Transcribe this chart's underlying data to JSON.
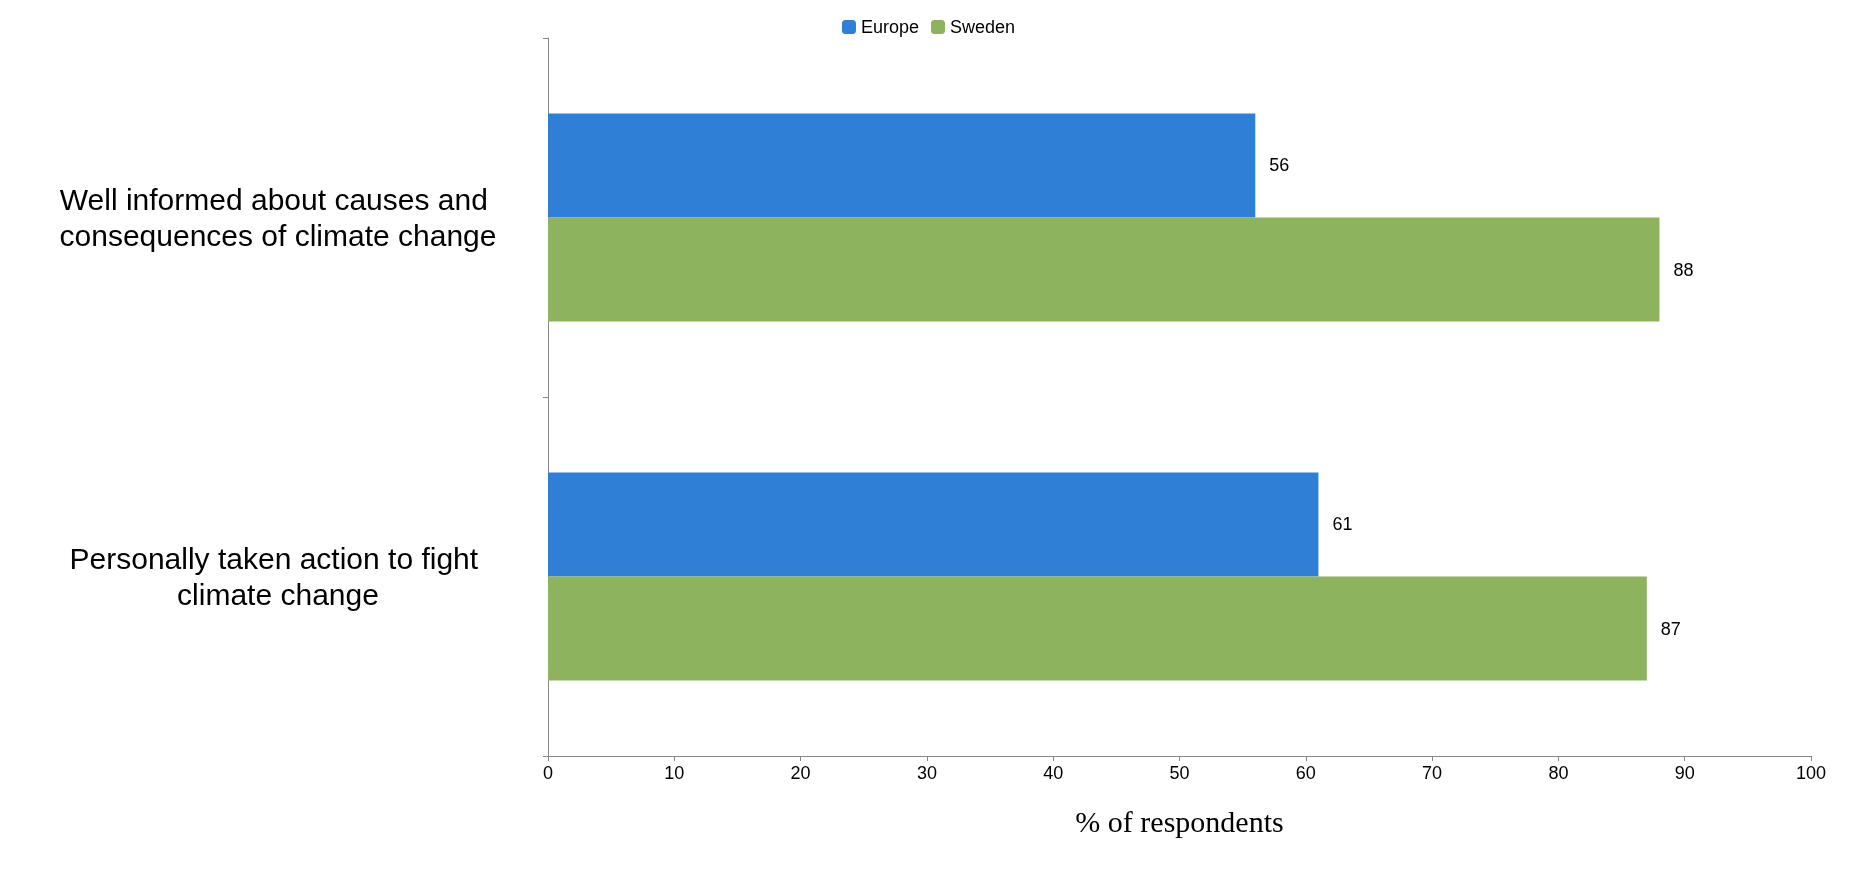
{
  "chart_data": {
    "type": "bar",
    "orientation": "horizontal",
    "xlabel": "% of respondents",
    "categories": [
      "Well informed about causes and consequences of climate change",
      "Personally taken action to fight climate change"
    ],
    "series": [
      {
        "name": "Europe",
        "color": "#2f7fd6",
        "values": [
          56,
          61
        ]
      },
      {
        "name": "Sweden",
        "color": "#8db35e",
        "values": [
          88,
          87
        ]
      }
    ],
    "xlim": [
      0,
      100
    ],
    "xticks": [
      0,
      10,
      20,
      30,
      40,
      50,
      60,
      70,
      80,
      90,
      100
    ],
    "data_labels": true,
    "grid": false,
    "legend": "top"
  }
}
